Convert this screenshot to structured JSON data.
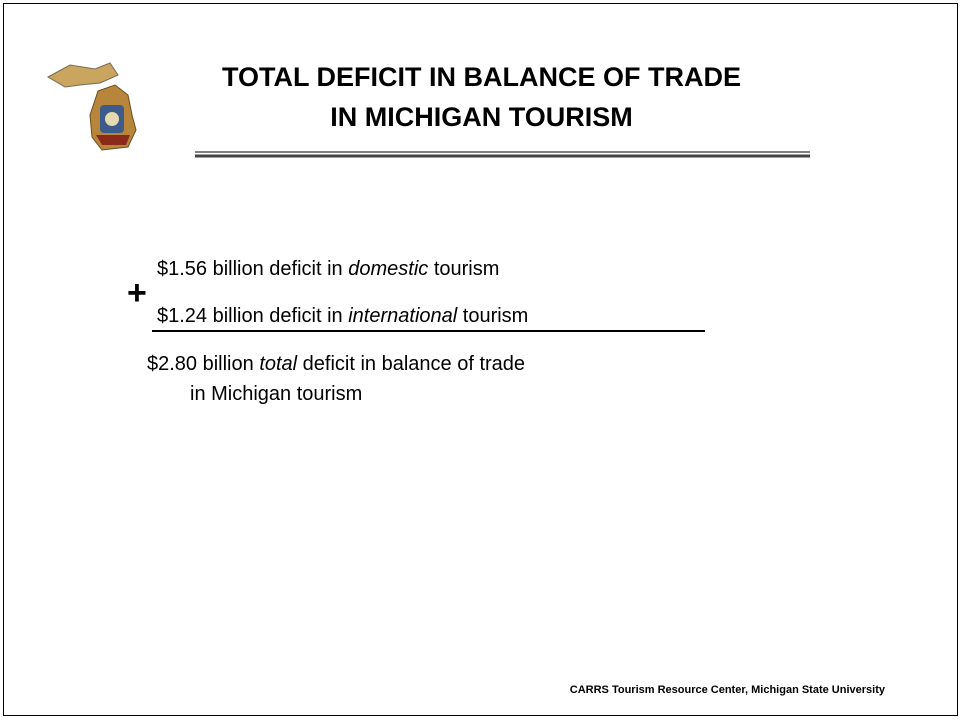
{
  "header": {
    "title": [
      "TOTAL DEFICIT IN BALANCE OF TRADE",
      "IN MICHIGAN TOURISM"
    ]
  },
  "body": {
    "operator": "+",
    "lines": [
      {
        "before": "$1.56 billion deficit in ",
        "emphasis": "domestic",
        "after": " tourism"
      },
      {
        "before": "$1.24 billion deficit in ",
        "emphasis": "international",
        "after": " tourism"
      },
      {
        "before": "$2.80 billion ",
        "emphasis": "total",
        "after": " deficit in balance of trade",
        "continuation": "in Michigan tourism"
      }
    ]
  },
  "footer": {
    "text": "CARRS Tourism Resource Center, Michigan State University"
  }
}
